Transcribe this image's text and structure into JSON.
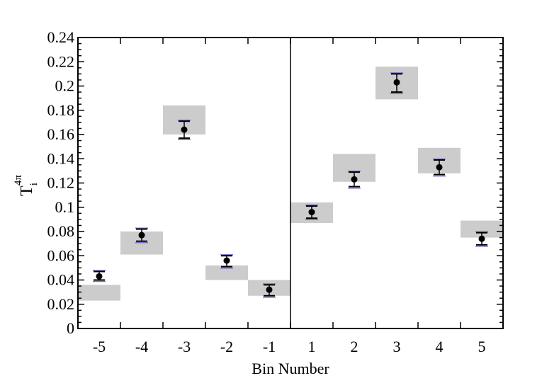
{
  "chart_data": {
    "type": "scatter",
    "xlabel": "Bin Number",
    "ylabel": {
      "main": "T",
      "sub": "i",
      "sup": "4π"
    },
    "ylim": [
      0,
      0.24
    ],
    "yticks": [
      "0",
      "0.02",
      "0.04",
      "0.06",
      "0.08",
      "0.1",
      "0.12",
      "0.14",
      "0.16",
      "0.18",
      "0.2",
      "0.22",
      "0.24"
    ],
    "categories": [
      "-5",
      "-4",
      "-3",
      "-2",
      "-1",
      "1",
      "2",
      "3",
      "4",
      "5"
    ],
    "grid": false,
    "divider_between": [
      "-1",
      "1"
    ],
    "colors": {
      "band": "#cccccc",
      "point": "#000000",
      "inner_error": "#7070c8"
    },
    "series": [
      {
        "values": [
          0.043,
          0.077,
          0.164,
          0.056,
          0.032,
          0.096,
          0.123,
          0.203,
          0.133,
          0.074
        ],
        "error_low": [
          0.04,
          0.072,
          0.157,
          0.051,
          0.027,
          0.091,
          0.117,
          0.195,
          0.127,
          0.069
        ],
        "error_high": [
          0.047,
          0.082,
          0.171,
          0.06,
          0.036,
          0.101,
          0.129,
          0.21,
          0.139,
          0.079
        ]
      }
    ],
    "bands": [
      {
        "low": 0.023,
        "high": 0.036
      },
      {
        "low": 0.061,
        "high": 0.08
      },
      {
        "low": 0.16,
        "high": 0.184
      },
      {
        "low": 0.04,
        "high": 0.052
      },
      {
        "low": 0.027,
        "high": 0.04
      },
      {
        "low": 0.087,
        "high": 0.104
      },
      {
        "low": 0.121,
        "high": 0.144
      },
      {
        "low": 0.189,
        "high": 0.216
      },
      {
        "low": 0.128,
        "high": 0.149
      },
      {
        "low": 0.075,
        "high": 0.089
      }
    ]
  }
}
